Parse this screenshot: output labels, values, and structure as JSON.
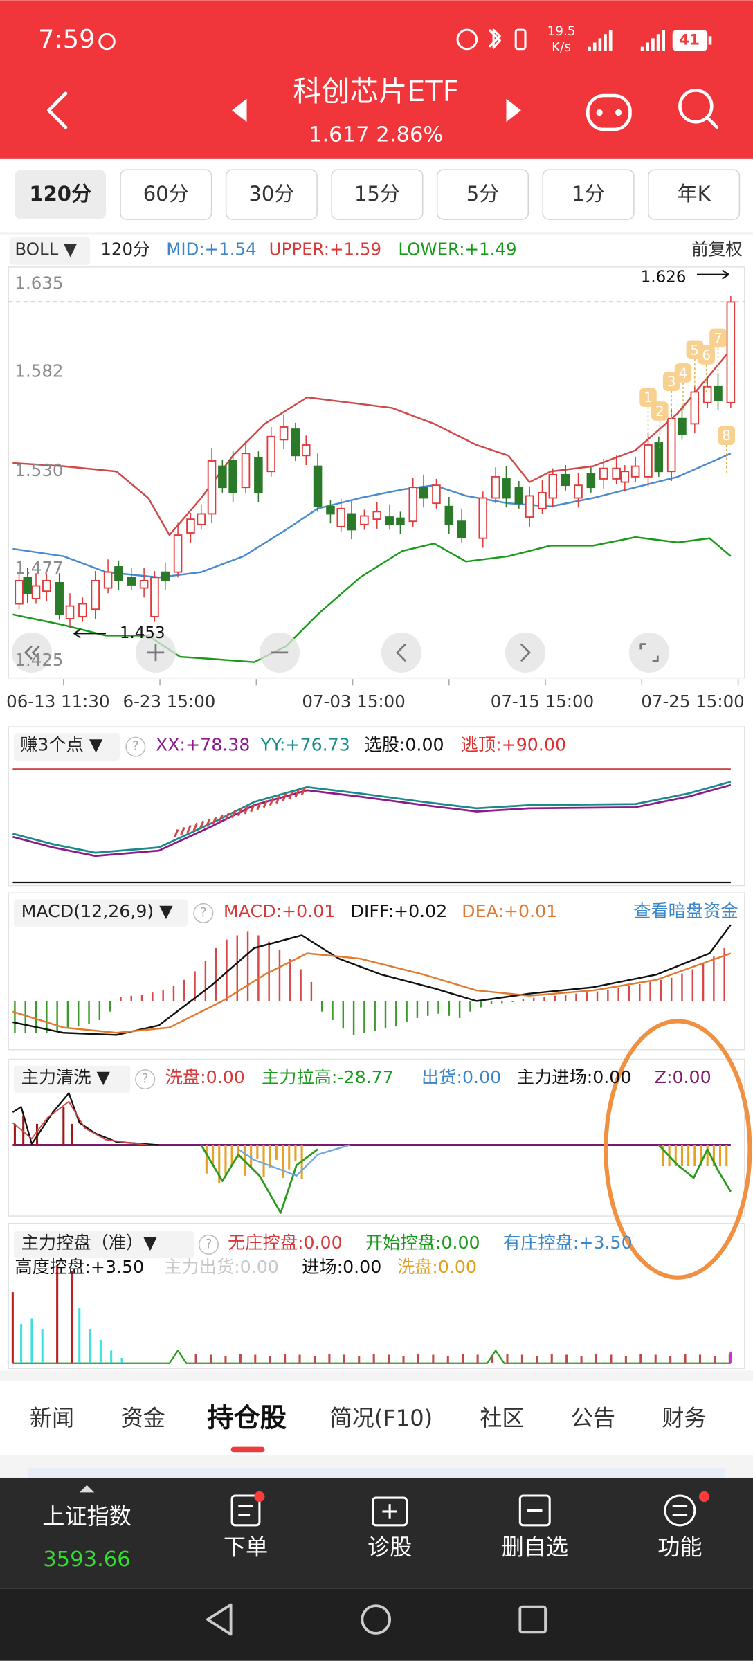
{
  "status_bar": {
    "time": "7:59",
    "speed": "19.5",
    "speed_unit": "K/s",
    "battery": "41"
  },
  "header": {
    "title": "科创芯片ETF",
    "price": "1.617 2.86%"
  },
  "period_tabs": [
    "120分",
    "60分",
    "30分",
    "15分",
    "5分",
    "1分",
    "年K"
  ],
  "boll": {
    "indicator": "BOLL ▼",
    "period": "120分",
    "mid": "MID:+1.54",
    "upper": "UPPER:+1.59",
    "lower": "LOWER:+1.49",
    "adjust": "前复权",
    "price_labels": [
      "1.635",
      "1.582",
      "1.530",
      "1.477",
      "1.425"
    ],
    "high_label": "1.626",
    "low_label": "1.453",
    "markers": [
      "1",
      "2",
      "3",
      "4",
      "5",
      "6",
      "7",
      "8"
    ],
    "dates": [
      "06-13 11:30",
      "6-23 15:00",
      "07-03 15:00",
      "07-15 15:00",
      "07-25 15:00"
    ]
  },
  "indicator_zhuan": {
    "name": "赚3个点 ▼",
    "help": "?",
    "items": [
      "XX:+78.38",
      "YY:+76.73",
      "选股:0.00",
      "逃顶:+90.00"
    ]
  },
  "macd": {
    "name": "MACD(12,26,9) ▼",
    "help": "?",
    "items": [
      "MACD:+0.01",
      "DIFF:+0.02",
      "DEA:+0.01"
    ],
    "link": "查看暗盘资金"
  },
  "main_wash": {
    "name": "主力清洗 ▼",
    "help": "?",
    "items": [
      "洗盘:0.00",
      "主力拉高:-28.77",
      "出货:0.00",
      "主力进场:0.00",
      "Z:0.00"
    ]
  },
  "main_control": {
    "name": "主力控盘（准）▼",
    "help": "?",
    "items": [
      "无庄控盘:0.00",
      "开始控盘:0.00",
      "有庄控盘:+3.50",
      "高度控盘:+3.50",
      "主力出货:0.00",
      "进场:0.00",
      "洗盘:0.00"
    ]
  },
  "content_tabs": [
    "新闻",
    "资金",
    "持仓股",
    "简况(F10)",
    "社区",
    "公告",
    "财务"
  ],
  "bottom_bar": {
    "index_name": "上证指数",
    "index_value": "3593.66",
    "actions": [
      "下单",
      "诊股",
      "删自选",
      "功能"
    ]
  }
}
